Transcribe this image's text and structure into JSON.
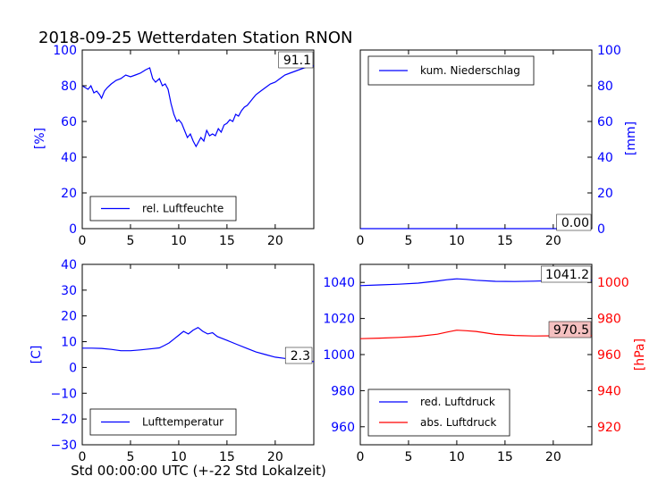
{
  "figure": {
    "title": "2018-09-25 Wetterdaten Station RNON",
    "xlabel": "Std 00:00:00 UTC (+-22 Std Lokalzeit)"
  },
  "colors": {
    "blue": "#0000ff",
    "red": "#ff0000",
    "black": "#000000"
  },
  "chart_data": [
    {
      "type": "line",
      "ylabel": "[%]",
      "xlim": [
        0,
        24
      ],
      "ylim": [
        0,
        100
      ],
      "xticks": [
        0,
        5,
        10,
        15,
        20
      ],
      "yticks": [
        0,
        20,
        40,
        60,
        80,
        100
      ],
      "legend": "lower-left",
      "last_value": "91.1",
      "series": [
        {
          "name": "rel. Luftfeuchte",
          "color": "#0000ff",
          "x": [
            0,
            0.3,
            0.6,
            0.9,
            1.2,
            1.5,
            1.8,
            2.0,
            2.3,
            2.6,
            3.0,
            3.5,
            4.0,
            4.5,
            5.0,
            5.5,
            6.0,
            6.3,
            6.6,
            7.0,
            7.3,
            7.6,
            8.0,
            8.3,
            8.6,
            8.9,
            9.2,
            9.5,
            9.8,
            10.0,
            10.3,
            10.6,
            10.9,
            11.2,
            11.5,
            11.8,
            12.0,
            12.3,
            12.6,
            12.9,
            13.2,
            13.5,
            13.8,
            14.1,
            14.4,
            14.7,
            15.0,
            15.3,
            15.6,
            15.9,
            16.2,
            16.5,
            16.8,
            17.1,
            17.4,
            17.7,
            18.0,
            18.5,
            19.0,
            19.5,
            20.0,
            20.5,
            21.0,
            21.5,
            22.0,
            22.5,
            23.0,
            23.5,
            24.0
          ],
          "y": [
            80,
            79,
            78,
            80,
            76,
            77,
            75,
            73,
            77,
            79,
            81,
            83,
            84,
            86,
            85,
            86,
            87,
            88,
            89,
            90,
            84,
            82,
            84,
            80,
            81,
            78,
            70,
            64,
            60,
            61,
            59,
            55,
            51,
            53,
            49,
            46,
            48,
            51,
            49,
            55,
            52,
            53,
            52,
            56,
            54,
            58,
            59,
            61,
            60,
            64,
            63,
            66,
            68,
            69,
            71,
            73,
            75,
            77,
            79,
            81,
            82,
            84,
            86,
            87,
            88,
            89,
            90,
            91,
            91.1
          ]
        }
      ]
    },
    {
      "type": "line",
      "ylabel": "[mm]",
      "xlim": [
        0,
        24
      ],
      "ylim": [
        0,
        100
      ],
      "xticks": [
        0,
        5,
        10,
        15,
        20
      ],
      "yticks": [
        0,
        20,
        40,
        60,
        80,
        100
      ],
      "legend": "top-left",
      "last_value": "0.00",
      "series": [
        {
          "name": "kum. Niederschlag",
          "color": "#0000ff",
          "x": [
            0,
            24
          ],
          "y": [
            0,
            0
          ]
        }
      ]
    },
    {
      "type": "line",
      "ylabel": "[C]",
      "xlim": [
        0,
        24
      ],
      "ylim": [
        -30,
        40
      ],
      "xticks": [
        0,
        5,
        10,
        15,
        20
      ],
      "yticks": [
        -30,
        -20,
        -10,
        0,
        10,
        20,
        30,
        40
      ],
      "legend": "lower-left",
      "last_value": "2.3",
      "series": [
        {
          "name": "Lufttemperatur",
          "color": "#0000ff",
          "x": [
            0,
            1,
            2,
            3,
            4,
            5,
            6,
            7,
            8,
            8.5,
            9,
            9.5,
            10,
            10.5,
            11,
            11.5,
            12,
            12.5,
            13,
            13.5,
            14,
            15,
            16,
            17,
            18,
            19,
            20,
            21,
            22,
            23,
            24
          ],
          "y": [
            7.5,
            7.5,
            7.4,
            7.0,
            6.5,
            6.5,
            6.8,
            7.2,
            7.6,
            8.5,
            9.5,
            11,
            12.5,
            14,
            13,
            14.5,
            15.5,
            14,
            13,
            13.5,
            12,
            10.5,
            9,
            7.5,
            6,
            5,
            4,
            3.5,
            3,
            2.5,
            2.3
          ]
        }
      ]
    },
    {
      "type": "line",
      "ylabel": "[hPa]",
      "xlim": [
        0,
        24
      ],
      "ylim_left": [
        950,
        1050
      ],
      "ylim_right": [
        910,
        1010
      ],
      "xticks": [
        0,
        5,
        10,
        15,
        20
      ],
      "yticks_left": [
        960,
        980,
        1000,
        1020,
        1040
      ],
      "yticks_right": [
        920,
        940,
        960,
        980,
        1000
      ],
      "legend": "lower-left",
      "last_value_top": "1041.2",
      "last_value_bottom": "970.5",
      "series": [
        {
          "name": "red. Luftdruck",
          "color": "#0000ff",
          "axis": "left",
          "x": [
            0,
            2,
            4,
            6,
            8,
            9,
            10,
            11,
            12,
            14,
            16,
            18,
            20,
            22,
            24
          ],
          "y": [
            1038.2,
            1038.6,
            1039.0,
            1039.6,
            1040.8,
            1041.5,
            1042.0,
            1041.7,
            1041.2,
            1040.6,
            1040.5,
            1040.7,
            1041.0,
            1041.2,
            1041.2
          ]
        },
        {
          "name": "abs. Luftdruck",
          "color": "#ff0000",
          "axis": "right",
          "x": [
            0,
            2,
            4,
            6,
            8,
            9,
            10,
            11,
            12,
            14,
            16,
            18,
            20,
            22,
            24
          ],
          "y": [
            968.8,
            969.1,
            969.5,
            970.1,
            971.3,
            972.5,
            973.5,
            973.2,
            972.8,
            971.2,
            970.6,
            970.3,
            970.4,
            970.5,
            970.5
          ]
        }
      ]
    }
  ]
}
